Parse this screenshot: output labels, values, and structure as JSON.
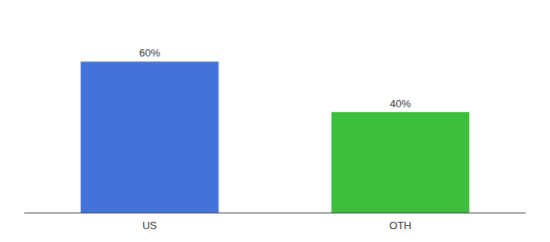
{
  "chart_data": {
    "type": "bar",
    "categories": [
      "US",
      "OTH"
    ],
    "values": [
      60,
      40
    ],
    "value_labels": [
      "60%",
      "40%"
    ],
    "data_labels": true,
    "colors": [
      "#4472db",
      "#3dbf3d"
    ],
    "ylim": [
      0,
      78
    ],
    "tick_labels": "x",
    "grid": false
  }
}
